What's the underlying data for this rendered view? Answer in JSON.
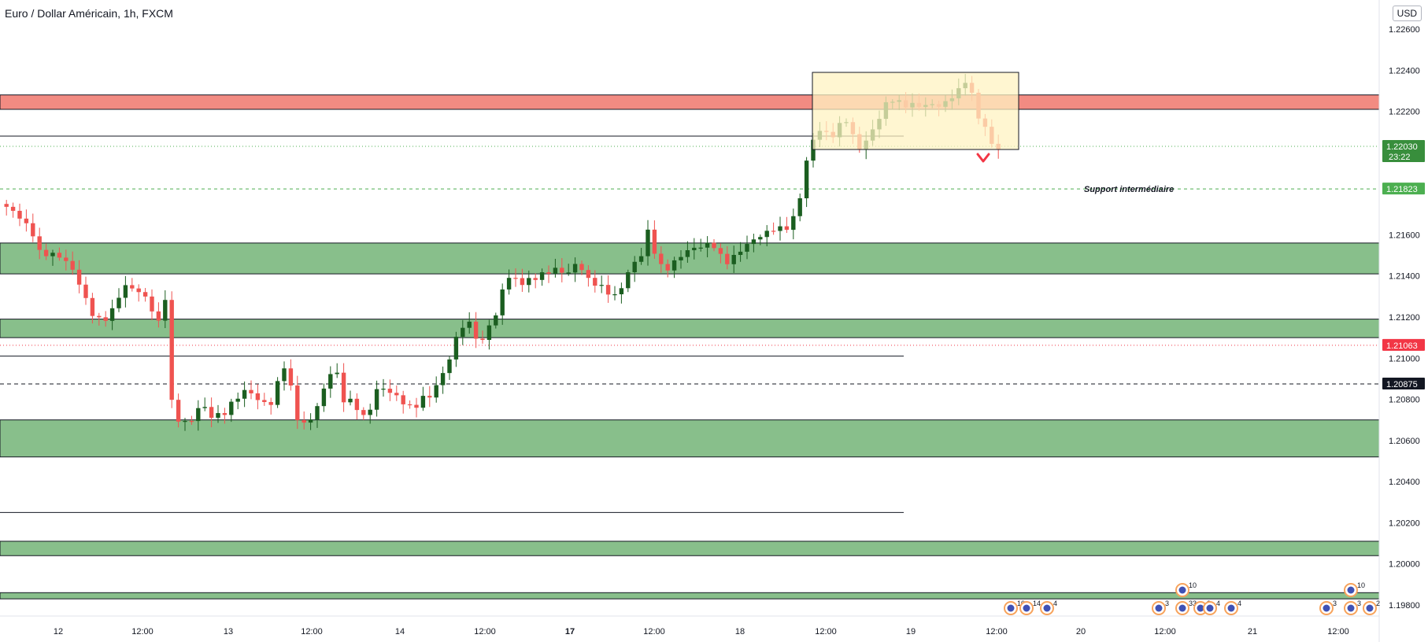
{
  "header": {
    "title": "Euro / Dollar Américain, 1h, FXCM",
    "currency_button": "USD"
  },
  "price_axis": {
    "ticks": [
      "1.22600",
      "1.22400",
      "1.22200",
      "1.21600",
      "1.21400",
      "1.21200",
      "1.21000",
      "1.20800",
      "1.20600",
      "1.20400",
      "1.20200",
      "1.20000",
      "1.19800"
    ],
    "tick_values": [
      1.226,
      1.224,
      1.222,
      1.216,
      1.214,
      1.212,
      1.21,
      1.208,
      1.206,
      1.204,
      1.202,
      1.2,
      1.198
    ]
  },
  "time_axis": {
    "labels": [
      "12",
      "12:00",
      "13",
      "12:00",
      "14",
      "12:00",
      "17",
      "12:00",
      "18",
      "12:00",
      "19",
      "12:00",
      "20",
      "12:00",
      "21",
      "12:00"
    ],
    "bold_labels": [
      "17"
    ]
  },
  "price_tags": [
    {
      "id": "current",
      "value": 1.2203,
      "label": "1.22030",
      "sublabel": "23:22",
      "color": "#388e3c"
    },
    {
      "id": "support",
      "value": 1.21823,
      "label": "1.21823",
      "color": "#4caf50"
    },
    {
      "id": "red-line",
      "value": 1.21063,
      "label": "1.21063",
      "color": "#f23645"
    },
    {
      "id": "dashed-line",
      "value": 1.20875,
      "label": "1.20875",
      "color": "#131722"
    }
  ],
  "annotations": {
    "support_label": "Support intermédiaire"
  },
  "zones": {
    "resistance_color": "#f28b82",
    "support_color": "#88bf8b",
    "consolidation_color": "#fff3c2",
    "support_zones": [
      {
        "from": 1.2141,
        "to": 1.2156
      },
      {
        "from": 1.211,
        "to": 1.2119
      },
      {
        "from": 1.2052,
        "to": 1.207
      },
      {
        "from": 1.2004,
        "to": 1.2011
      },
      {
        "from": 1.1983,
        "to": 1.1986
      }
    ],
    "resistance_zone": {
      "from": 1.2221,
      "to": 1.2228
    }
  },
  "levels": {
    "solid": [
      1.2208,
      1.2101,
      1.2025
    ]
  },
  "events": {
    "badge_counts": [
      "10",
      "14",
      "4",
      "3",
      "10",
      "33",
      "3",
      "4",
      "4",
      "3",
      "10",
      "3",
      "2"
    ]
  },
  "colors": {
    "up": "#1b5e20",
    "down": "#ef5350",
    "accent": "#2962ff"
  }
}
